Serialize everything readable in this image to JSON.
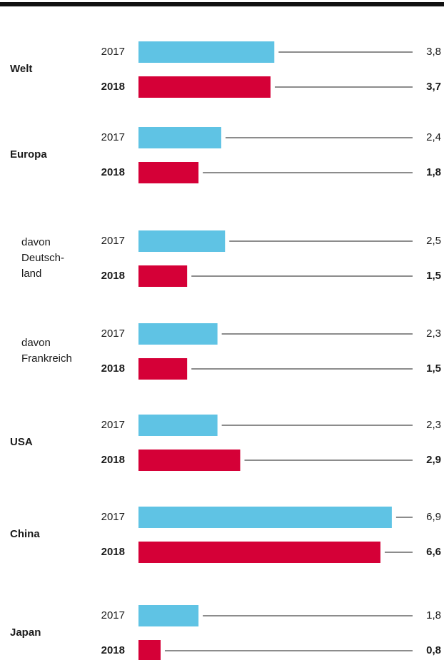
{
  "chart_data": {
    "type": "bar",
    "orientation": "horizontal",
    "categories": [
      [
        "Welt"
      ],
      [
        "Europa"
      ],
      [
        "davon",
        "Deutsch-",
        "land"
      ],
      [
        "davon",
        "Frankreich"
      ],
      [
        "USA"
      ],
      [
        "China"
      ],
      [
        "Japan"
      ]
    ],
    "series": [
      {
        "name": "2017",
        "color": "#5fc3e4",
        "values": [
          3.8,
          2.4,
          2.5,
          2.3,
          2.3,
          6.9,
          1.8
        ],
        "value_labels": [
          "3,8",
          "2,4",
          "2,5",
          "2,3",
          "2,3",
          "6,9",
          "1,8"
        ]
      },
      {
        "name": "2018",
        "color": "#d50037",
        "values": [
          3.7,
          1.8,
          1.5,
          1.5,
          2.9,
          6.6,
          0.8
        ],
        "value_labels": [
          "3,7",
          "1,8",
          "1,5",
          "1,5",
          "2,9",
          "6,6",
          "0,8"
        ]
      }
    ]
  }
}
